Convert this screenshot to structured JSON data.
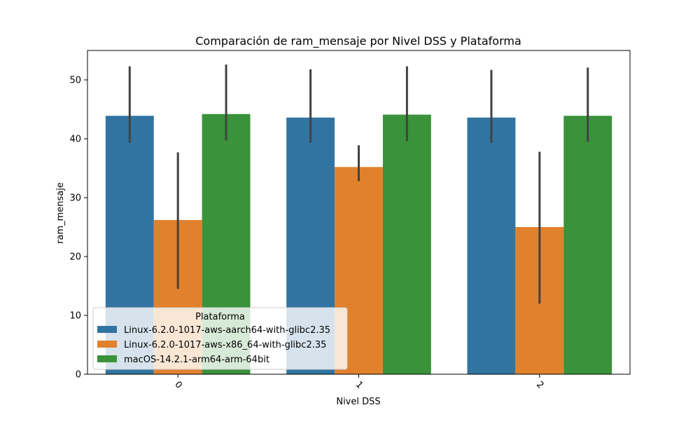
{
  "chart_data": {
    "type": "bar",
    "title": "Comparación de ram_mensaje por Nivel DSS y Plataforma",
    "xlabel": "Nivel DSS",
    "ylabel": "ram_mensaje",
    "categories": [
      "0",
      "1",
      "2"
    ],
    "ylim": [
      0,
      55
    ],
    "yticks": [
      0,
      10,
      20,
      30,
      40,
      50
    ],
    "grid": false,
    "legend": {
      "title": "Plataforma",
      "placement": "lower-left"
    },
    "series": [
      {
        "name": "Linux-6.2.0-1017-aws-aarch64-with-glibc2.35",
        "color": "#3274a1",
        "values": [
          43.9,
          43.6,
          43.6
        ],
        "error_low": [
          39.3,
          39.3,
          39.3
        ],
        "error_high": [
          52.3,
          51.8,
          51.7
        ]
      },
      {
        "name": "Linux-6.2.0-1017-aws-x86_64-with-glibc2.35",
        "color": "#e1812c",
        "values": [
          26.2,
          35.2,
          25.0
        ],
        "error_low": [
          14.5,
          32.8,
          12.0
        ],
        "error_high": [
          37.7,
          38.9,
          37.8
        ]
      },
      {
        "name": "macOS-14.2.1-arm64-arm-64bit",
        "color": "#3a923a",
        "values": [
          44.2,
          44.1,
          43.9
        ],
        "error_low": [
          39.7,
          39.6,
          39.5
        ],
        "error_high": [
          52.6,
          52.3,
          52.1
        ]
      }
    ],
    "error_bar_color": "#424242"
  }
}
